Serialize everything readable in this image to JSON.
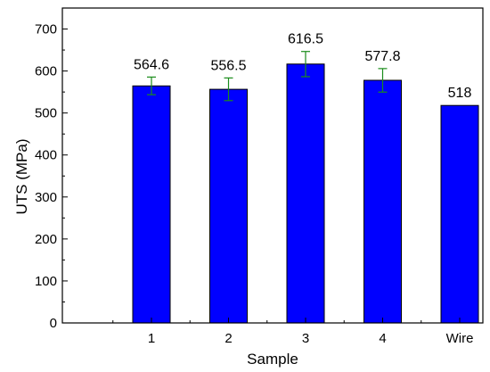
{
  "chart_data": {
    "type": "bar",
    "categories": [
      "1",
      "2",
      "3",
      "4",
      "Wire"
    ],
    "values": [
      564.6,
      556.5,
      616.5,
      577.8,
      518
    ],
    "data_labels": [
      "564.6",
      "556.5",
      "616.5",
      "577.8",
      "518"
    ],
    "error": [
      21,
      27,
      30,
      28,
      null
    ],
    "xlabel": "Sample",
    "ylabel": "UTS (MPa)",
    "ylim": [
      0,
      750
    ],
    "yticks": [
      0,
      100,
      200,
      300,
      400,
      500,
      600,
      700
    ],
    "grid": false,
    "legend": "none",
    "colors": {
      "bar_fill": "#0000ff",
      "bar_stroke": "#000000",
      "error_bar": "#1a8c1a",
      "axis": "#000000"
    }
  }
}
